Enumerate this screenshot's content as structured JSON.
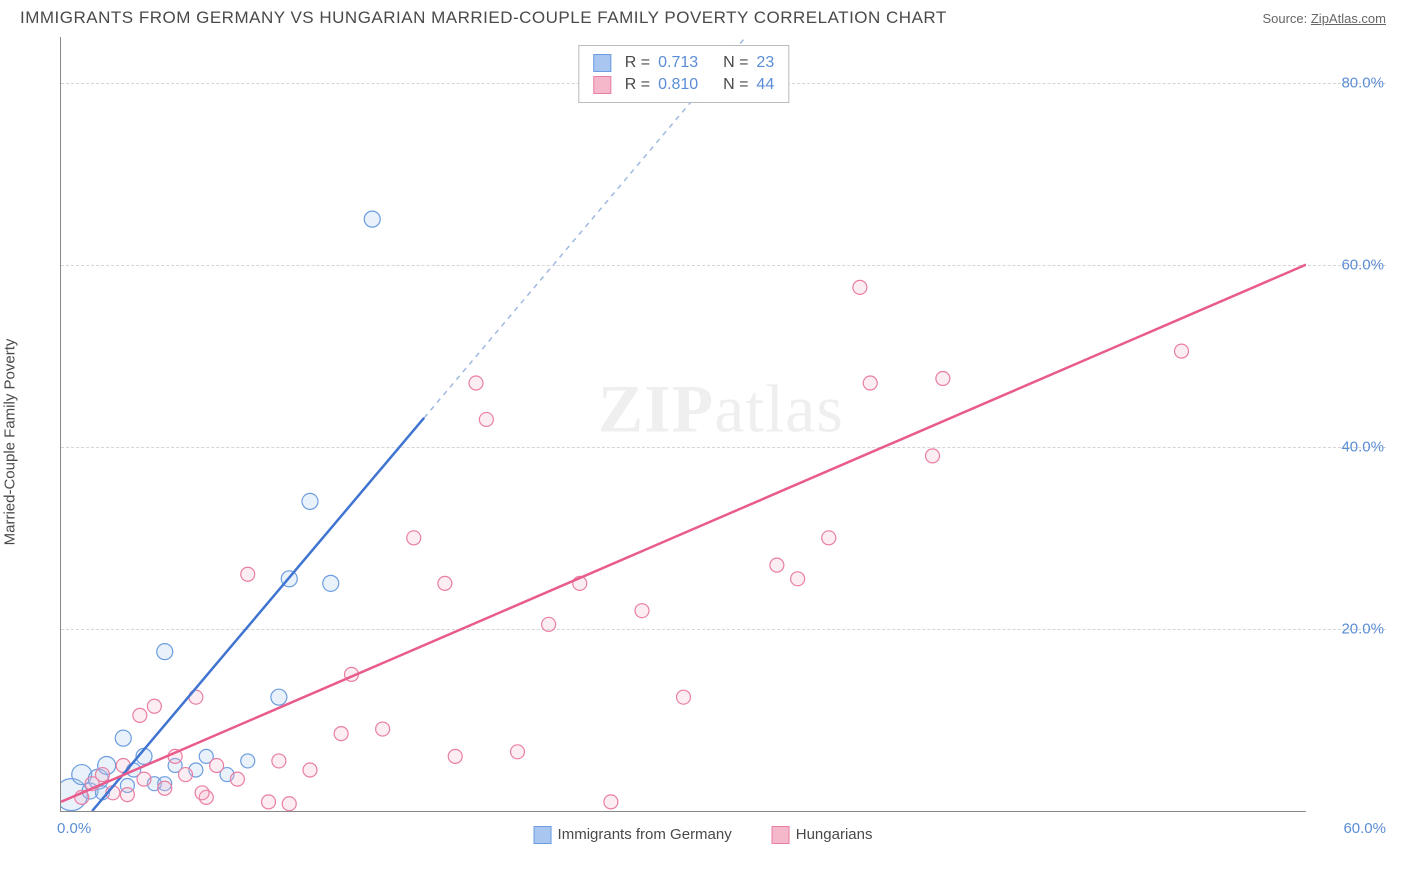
{
  "header": {
    "title": "IMMIGRANTS FROM GERMANY VS HUNGARIAN MARRIED-COUPLE FAMILY POVERTY CORRELATION CHART",
    "source_prefix": "Source: ",
    "source_name": "ZipAtlas.com"
  },
  "chart": {
    "type": "scatter",
    "ylabel": "Married-Couple Family Poverty",
    "xmin": 0,
    "xmax": 60,
    "ymin": 0,
    "ymax": 85,
    "xtick_start": "0.0%",
    "xtick_end": "60.0%",
    "yticks": [
      {
        "v": 20,
        "label": "20.0%"
      },
      {
        "v": 40,
        "label": "40.0%"
      },
      {
        "v": 60,
        "label": "60.0%"
      },
      {
        "v": 80,
        "label": "80.0%"
      }
    ],
    "grid_color": "#d5d5d5",
    "axis_color": "#888888",
    "tick_color": "#5b8dd6",
    "background_color": "#ffffff",
    "watermark": "ZIPatlas",
    "series": [
      {
        "name": "Immigrants from Germany",
        "fill": "#a8c6f0",
        "stroke": "#6b9de0",
        "line_color": "#3f74d1",
        "R": "0.713",
        "N": "23",
        "trend": {
          "x1": 1.5,
          "y1": 0,
          "x2": 33,
          "y2": 85,
          "dash_from_x": 17.5
        },
        "points": [
          {
            "x": 0.5,
            "y": 1.8,
            "r": 16
          },
          {
            "x": 1.0,
            "y": 4.0,
            "r": 10
          },
          {
            "x": 1.4,
            "y": 2.2,
            "r": 8
          },
          {
            "x": 1.8,
            "y": 3.5,
            "r": 10
          },
          {
            "x": 2.2,
            "y": 5.0,
            "r": 9
          },
          {
            "x": 2.0,
            "y": 2.0,
            "r": 7
          },
          {
            "x": 3.0,
            "y": 8.0,
            "r": 8
          },
          {
            "x": 3.5,
            "y": 4.5,
            "r": 7
          },
          {
            "x": 3.2,
            "y": 2.8,
            "r": 7
          },
          {
            "x": 4.0,
            "y": 6.0,
            "r": 8
          },
          {
            "x": 4.5,
            "y": 3.0,
            "r": 7
          },
          {
            "x": 5.0,
            "y": 17.5,
            "r": 8
          },
          {
            "x": 5.5,
            "y": 5.0,
            "r": 7
          },
          {
            "x": 6.5,
            "y": 4.5,
            "r": 7
          },
          {
            "x": 7.0,
            "y": 6.0,
            "r": 7
          },
          {
            "x": 8.0,
            "y": 4.0,
            "r": 7
          },
          {
            "x": 9.0,
            "y": 5.5,
            "r": 7
          },
          {
            "x": 10.5,
            "y": 12.5,
            "r": 8
          },
          {
            "x": 11.0,
            "y": 25.5,
            "r": 8
          },
          {
            "x": 12.0,
            "y": 34.0,
            "r": 8
          },
          {
            "x": 13.0,
            "y": 25.0,
            "r": 8
          },
          {
            "x": 15.0,
            "y": 65.0,
            "r": 8
          },
          {
            "x": 5.0,
            "y": 3.0,
            "r": 7
          }
        ]
      },
      {
        "name": "Hungarians",
        "fill": "#f5b8cb",
        "stroke": "#e97fa3",
        "line_color": "#e95b8a",
        "R": "0.810",
        "N": "44",
        "trend": {
          "x1": 0,
          "y1": 1,
          "x2": 60,
          "y2": 60
        },
        "points": [
          {
            "x": 1.0,
            "y": 1.5,
            "r": 7
          },
          {
            "x": 1.5,
            "y": 3.0,
            "r": 7
          },
          {
            "x": 2.0,
            "y": 4.0,
            "r": 7
          },
          {
            "x": 2.5,
            "y": 2.0,
            "r": 7
          },
          {
            "x": 3.0,
            "y": 5.0,
            "r": 7
          },
          {
            "x": 3.2,
            "y": 1.8,
            "r": 7
          },
          {
            "x": 3.8,
            "y": 10.5,
            "r": 7
          },
          {
            "x": 4.0,
            "y": 3.5,
            "r": 7
          },
          {
            "x": 4.5,
            "y": 11.5,
            "r": 7
          },
          {
            "x": 5.0,
            "y": 2.5,
            "r": 7
          },
          {
            "x": 5.5,
            "y": 6.0,
            "r": 7
          },
          {
            "x": 6.0,
            "y": 4.0,
            "r": 7
          },
          {
            "x": 6.5,
            "y": 12.5,
            "r": 7
          },
          {
            "x": 7.0,
            "y": 1.5,
            "r": 7
          },
          {
            "x": 7.5,
            "y": 5.0,
            "r": 7
          },
          {
            "x": 8.5,
            "y": 3.5,
            "r": 7
          },
          {
            "x": 9.0,
            "y": 26.0,
            "r": 7
          },
          {
            "x": 10.0,
            "y": 1.0,
            "r": 7
          },
          {
            "x": 10.5,
            "y": 5.5,
            "r": 7
          },
          {
            "x": 11.0,
            "y": 0.8,
            "r": 7
          },
          {
            "x": 12.0,
            "y": 4.5,
            "r": 7
          },
          {
            "x": 13.5,
            "y": 8.5,
            "r": 7
          },
          {
            "x": 14.0,
            "y": 15.0,
            "r": 7
          },
          {
            "x": 15.5,
            "y": 9.0,
            "r": 7
          },
          {
            "x": 17.0,
            "y": 30.0,
            "r": 7
          },
          {
            "x": 18.5,
            "y": 25.0,
            "r": 7
          },
          {
            "x": 19.0,
            "y": 6.0,
            "r": 7
          },
          {
            "x": 20.0,
            "y": 47.0,
            "r": 7
          },
          {
            "x": 20.5,
            "y": 43.0,
            "r": 7
          },
          {
            "x": 22.0,
            "y": 6.5,
            "r": 7
          },
          {
            "x": 23.5,
            "y": 20.5,
            "r": 7
          },
          {
            "x": 25.0,
            "y": 25.0,
            "r": 7
          },
          {
            "x": 26.5,
            "y": 1.0,
            "r": 7
          },
          {
            "x": 28.0,
            "y": 22.0,
            "r": 7
          },
          {
            "x": 30.0,
            "y": 12.5,
            "r": 7
          },
          {
            "x": 34.5,
            "y": 27.0,
            "r": 7
          },
          {
            "x": 35.5,
            "y": 25.5,
            "r": 7
          },
          {
            "x": 37.0,
            "y": 30.0,
            "r": 7
          },
          {
            "x": 38.5,
            "y": 57.5,
            "r": 7
          },
          {
            "x": 39.0,
            "y": 47.0,
            "r": 7
          },
          {
            "x": 42.0,
            "y": 39.0,
            "r": 7
          },
          {
            "x": 42.5,
            "y": 47.5,
            "r": 7
          },
          {
            "x": 54.0,
            "y": 50.5,
            "r": 7
          },
          {
            "x": 6.8,
            "y": 2.0,
            "r": 7
          }
        ]
      }
    ],
    "legend": {
      "s1": "Immigrants from Germany",
      "s2": "Hungarians"
    },
    "topbox": {
      "r_label": "R =",
      "n_label": "N ="
    }
  }
}
